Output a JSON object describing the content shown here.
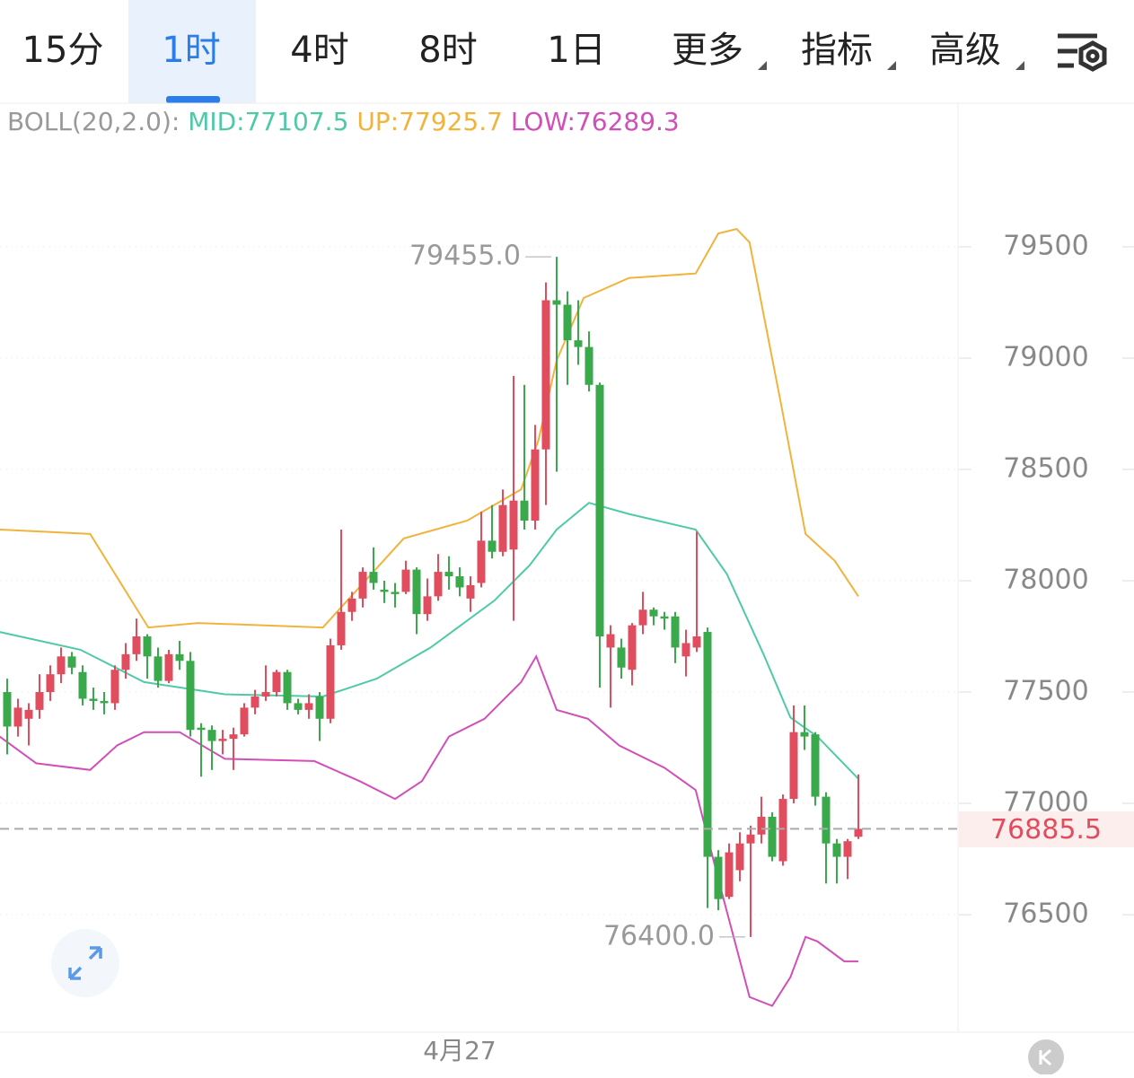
{
  "tabs": [
    "15分",
    "1时",
    "4时",
    "8时",
    "1日",
    "更多",
    "指标",
    "高级"
  ],
  "active_tab": "1时",
  "chart_data": {
    "type": "candlestick",
    "indicator": "BOLL(20,2.0):",
    "ylim": [
      75972,
      80145
    ],
    "yticks": [
      76500,
      77000,
      77500,
      78000,
      78500,
      79000,
      79500
    ],
    "grid": true,
    "x_label": "4月27",
    "up_color": "#e04d5e",
    "down_color": "#3aa94b",
    "candles": [
      {
        "open": 77500,
        "high": 77560,
        "low": 77220,
        "close": 77345
      },
      {
        "open": 77345,
        "high": 77470,
        "low": 77300,
        "close": 77430
      },
      {
        "open": 77380,
        "high": 77450,
        "low": 77260,
        "close": 77420
      },
      {
        "open": 77420,
        "high": 77580,
        "low": 77380,
        "close": 77500
      },
      {
        "open": 77500,
        "high": 77620,
        "low": 77460,
        "close": 77580
      },
      {
        "open": 77580,
        "high": 77700,
        "low": 77540,
        "close": 77660
      },
      {
        "open": 77660,
        "high": 77680,
        "low": 77580,
        "close": 77610
      },
      {
        "open": 77590,
        "high": 77620,
        "low": 77440,
        "close": 77470
      },
      {
        "open": 77470,
        "high": 77520,
        "low": 77420,
        "close": 77460
      },
      {
        "open": 77460,
        "high": 77500,
        "low": 77400,
        "close": 77450
      },
      {
        "open": 77450,
        "high": 77620,
        "low": 77420,
        "close": 77600
      },
      {
        "open": 77600,
        "high": 77720,
        "low": 77560,
        "close": 77670
      },
      {
        "open": 77670,
        "high": 77830,
        "low": 77640,
        "close": 77750
      },
      {
        "open": 77750,
        "high": 77760,
        "low": 77560,
        "close": 77660
      },
      {
        "open": 77660,
        "high": 77700,
        "low": 77520,
        "close": 77550
      },
      {
        "open": 77550,
        "high": 77690,
        "low": 77540,
        "close": 77670
      },
      {
        "open": 77670,
        "high": 77730,
        "low": 77600,
        "close": 77640
      },
      {
        "open": 77640,
        "high": 77680,
        "low": 77300,
        "close": 77330
      },
      {
        "open": 77340,
        "high": 77360,
        "low": 77120,
        "close": 77330
      },
      {
        "open": 77330,
        "high": 77350,
        "low": 77150,
        "close": 77280
      },
      {
        "open": 77280,
        "high": 77330,
        "low": 77220,
        "close": 77290
      },
      {
        "open": 77290,
        "high": 77340,
        "low": 77150,
        "close": 77310
      },
      {
        "open": 77310,
        "high": 77450,
        "low": 77300,
        "close": 77430
      },
      {
        "open": 77430,
        "high": 77510,
        "low": 77400,
        "close": 77480
      },
      {
        "open": 77480,
        "high": 77620,
        "low": 77460,
        "close": 77500
      },
      {
        "open": 77500,
        "high": 77600,
        "low": 77480,
        "close": 77590
      },
      {
        "open": 77590,
        "high": 77600,
        "low": 77420,
        "close": 77450
      },
      {
        "open": 77450,
        "high": 77470,
        "low": 77400,
        "close": 77420
      },
      {
        "open": 77420,
        "high": 77490,
        "low": 77380,
        "close": 77450
      },
      {
        "open": 77480,
        "high": 77500,
        "low": 77280,
        "close": 77380
      },
      {
        "open": 77380,
        "high": 77740,
        "low": 77360,
        "close": 77710
      },
      {
        "open": 77710,
        "high": 78230,
        "low": 77690,
        "close": 77860
      },
      {
        "open": 77860,
        "high": 77950,
        "low": 77820,
        "close": 77920
      },
      {
        "open": 77920,
        "high": 78060,
        "low": 77880,
        "close": 78040
      },
      {
        "open": 78040,
        "high": 78150,
        "low": 77960,
        "close": 77990
      },
      {
        "open": 77960,
        "high": 78000,
        "low": 77900,
        "close": 77950
      },
      {
        "open": 77950,
        "high": 77990,
        "low": 77880,
        "close": 77940
      },
      {
        "open": 77950,
        "high": 78090,
        "low": 77940,
        "close": 78050
      },
      {
        "open": 78050,
        "high": 78060,
        "low": 77760,
        "close": 77850
      },
      {
        "open": 77850,
        "high": 78010,
        "low": 77820,
        "close": 77930
      },
      {
        "open": 77930,
        "high": 78120,
        "low": 77910,
        "close": 78040
      },
      {
        "open": 78040,
        "high": 78110,
        "low": 77960,
        "close": 78020
      },
      {
        "open": 78020,
        "high": 78060,
        "low": 77930,
        "close": 77970
      },
      {
        "open": 77920,
        "high": 78020,
        "low": 77860,
        "close": 77980
      },
      {
        "open": 77990,
        "high": 78310,
        "low": 77970,
        "close": 78180
      },
      {
        "open": 78180,
        "high": 78340,
        "low": 78100,
        "close": 78130
      },
      {
        "open": 78130,
        "high": 78410,
        "low": 78110,
        "close": 78340
      },
      {
        "open": 78140,
        "high": 78920,
        "low": 77820,
        "close": 78360
      },
      {
        "open": 78360,
        "high": 78880,
        "low": 78230,
        "close": 78270
      },
      {
        "open": 78270,
        "high": 78700,
        "low": 78230,
        "close": 78590
      },
      {
        "open": 78590,
        "high": 79340,
        "low": 78340,
        "close": 79260
      },
      {
        "open": 79260,
        "high": 79455,
        "low": 78490,
        "close": 79240
      },
      {
        "open": 79240,
        "high": 79300,
        "low": 78880,
        "close": 79080
      },
      {
        "open": 79080,
        "high": 79260,
        "low": 78970,
        "close": 79050
      },
      {
        "open": 79050,
        "high": 79120,
        "low": 78850,
        "close": 78880
      },
      {
        "open": 78880,
        "high": 78890,
        "low": 77520,
        "close": 77750
      },
      {
        "open": 77700,
        "high": 77800,
        "low": 77430,
        "close": 77760
      },
      {
        "open": 77700,
        "high": 77740,
        "low": 77560,
        "close": 77610
      },
      {
        "open": 77600,
        "high": 77810,
        "low": 77530,
        "close": 77800
      },
      {
        "open": 77800,
        "high": 77950,
        "low": 77760,
        "close": 77870
      },
      {
        "open": 77870,
        "high": 77880,
        "low": 77800,
        "close": 77840
      },
      {
        "open": 77840,
        "high": 77860,
        "low": 77780,
        "close": 77830
      },
      {
        "open": 77840,
        "high": 77860,
        "low": 77630,
        "close": 77700
      },
      {
        "open": 77660,
        "high": 77780,
        "low": 77570,
        "close": 77720
      },
      {
        "open": 77700,
        "high": 78220,
        "low": 77680,
        "close": 77750
      },
      {
        "open": 77770,
        "high": 77790,
        "low": 76530,
        "close": 76760
      },
      {
        "open": 76760,
        "high": 76790,
        "low": 76520,
        "close": 76570
      },
      {
        "open": 76580,
        "high": 76820,
        "low": 76570,
        "close": 76780
      },
      {
        "open": 76700,
        "high": 76870,
        "low": 76650,
        "close": 76820
      },
      {
        "open": 76820,
        "high": 76900,
        "low": 76400,
        "close": 76860
      },
      {
        "open": 76860,
        "high": 77030,
        "low": 76820,
        "close": 76940
      },
      {
        "open": 76940,
        "high": 76960,
        "low": 76740,
        "close": 76760
      },
      {
        "open": 76740,
        "high": 77040,
        "low": 76720,
        "close": 77020
      },
      {
        "open": 77020,
        "high": 77440,
        "low": 77000,
        "close": 77320
      },
      {
        "open": 77320,
        "high": 77440,
        "low": 77240,
        "close": 77300
      },
      {
        "open": 77310,
        "high": 77320,
        "low": 76990,
        "close": 77030
      },
      {
        "open": 77030,
        "high": 77050,
        "low": 76640,
        "close": 76820
      },
      {
        "open": 76820,
        "high": 76840,
        "low": 76640,
        "close": 76760
      },
      {
        "open": 76760,
        "high": 76840,
        "low": 76660,
        "close": 76830
      },
      {
        "open": 76850,
        "high": 77130,
        "low": 76840,
        "close": 76885.5
      }
    ],
    "bands": [
      {
        "label": "MID:77107.5",
        "color": "#4fc9a8",
        "x": [
          -0.7,
          6.8,
          12.7,
          20.2,
          29.3,
          34.3,
          39.3,
          45.2,
          48.5,
          51,
          54,
          57.7,
          63.9,
          66.8,
          70.2,
          72.7,
          75.2,
          79
        ],
        "values": [
          77770,
          77690,
          77545,
          77490,
          77480,
          77560,
          77700,
          77910,
          78070,
          78230,
          78350,
          78300,
          78230,
          78030,
          77670,
          77385,
          77300,
          77110
        ]
      },
      {
        "label": "UP:77925.7",
        "color": "#f0b43c",
        "x": [
          -0.7,
          7.7,
          13.1,
          17.7,
          29.3,
          36.8,
          42.7,
          47.7,
          49.3,
          51,
          53.5,
          57.7,
          63.9,
          66,
          67.7,
          68.9,
          71.8,
          74.1,
          76.8,
          79
        ],
        "values": [
          78230,
          78210,
          77790,
          77810,
          77790,
          78190,
          78270,
          78410,
          78630,
          78990,
          79270,
          79360,
          79380,
          79560,
          79580,
          79520,
          78800,
          78210,
          78090,
          77930
        ]
      },
      {
        "label": "LOW:76289.3",
        "color": "#d14fb8",
        "x": [
          -0.7,
          2.7,
          7.7,
          10.2,
          12.7,
          16,
          20.2,
          28.5,
          32.7,
          36,
          38.5,
          41,
          44.3,
          47.7,
          49.1,
          51,
          53.9,
          56.8,
          61,
          63.9,
          66,
          68.9,
          71,
          72.7,
          74.1,
          75.2,
          77.7,
          79
        ],
        "values": [
          77300,
          77180,
          77150,
          77260,
          77320,
          77320,
          77200,
          77190,
          77100,
          77020,
          77100,
          77300,
          77380,
          77545,
          77660,
          77420,
          77380,
          77260,
          77160,
          77060,
          76660,
          76130,
          76090,
          76220,
          76400,
          76380,
          76290,
          76290
        ]
      }
    ],
    "high_label": {
      "value": 79455,
      "label": "79455.0"
    },
    "low_label": {
      "value": 76400,
      "label": "76400.0"
    },
    "last_price": 76885.5
  }
}
